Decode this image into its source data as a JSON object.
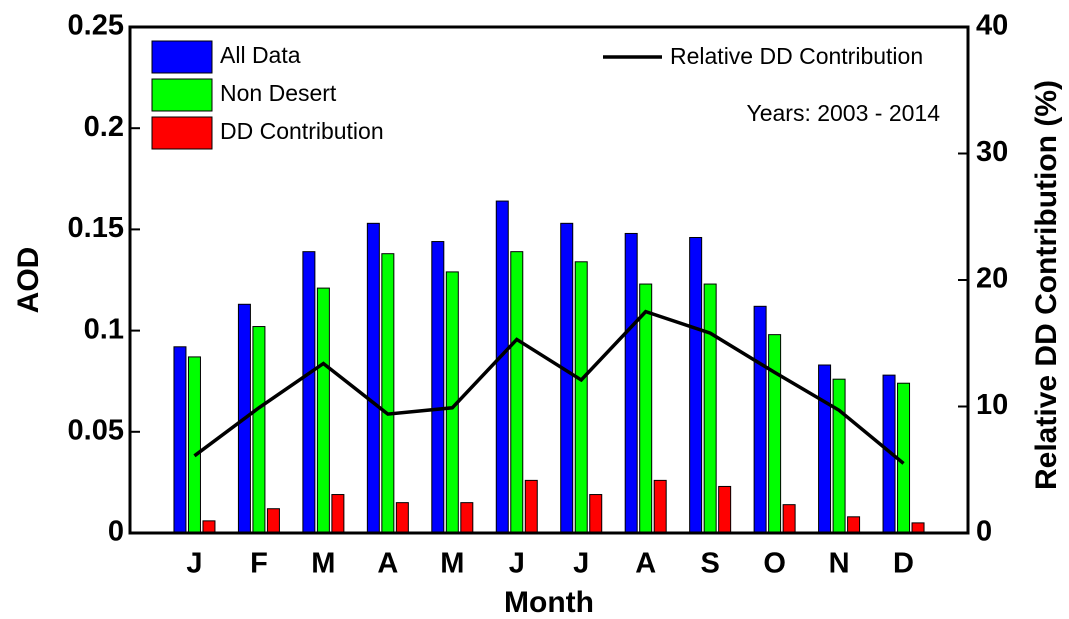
{
  "chart_data": {
    "type": "bar",
    "x_label": "Month",
    "y_label": "AOD",
    "y2_label": "Relative DD Contribution (%)",
    "annotation": "Years: 2003 - 2014",
    "categories": [
      "J",
      "F",
      "M",
      "A",
      "M",
      "J",
      "J",
      "A",
      "S",
      "O",
      "N",
      "D"
    ],
    "series": [
      {
        "name": "All Data",
        "type": "bar",
        "color": "#0000ff",
        "values": [
          0.092,
          0.113,
          0.139,
          0.153,
          0.144,
          0.164,
          0.153,
          0.148,
          0.146,
          0.112,
          0.083,
          0.078
        ]
      },
      {
        "name": "Non Desert",
        "type": "bar",
        "color": "#00ff00",
        "values": [
          0.087,
          0.102,
          0.121,
          0.138,
          0.129,
          0.139,
          0.134,
          0.123,
          0.123,
          0.098,
          0.076,
          0.074
        ]
      },
      {
        "name": "DD Contribution",
        "type": "bar",
        "color": "#ff0000",
        "values": [
          0.006,
          0.012,
          0.019,
          0.015,
          0.015,
          0.026,
          0.019,
          0.026,
          0.023,
          0.014,
          0.008,
          0.005
        ]
      },
      {
        "name": "Relative DD Contribution",
        "type": "line",
        "axis": "y2",
        "color": "#000000",
        "values": [
          6.1,
          9.9,
          13.4,
          9.4,
          9.9,
          15.3,
          12.1,
          17.5,
          15.8,
          12.7,
          9.7,
          5.5
        ]
      }
    ],
    "ylim": [
      0,
      0.25
    ],
    "yticks": [
      0,
      0.05,
      0.1,
      0.15,
      0.2,
      0.25
    ],
    "y2lim": [
      0,
      40
    ],
    "y2ticks": [
      0,
      10,
      20,
      30,
      40
    ]
  }
}
